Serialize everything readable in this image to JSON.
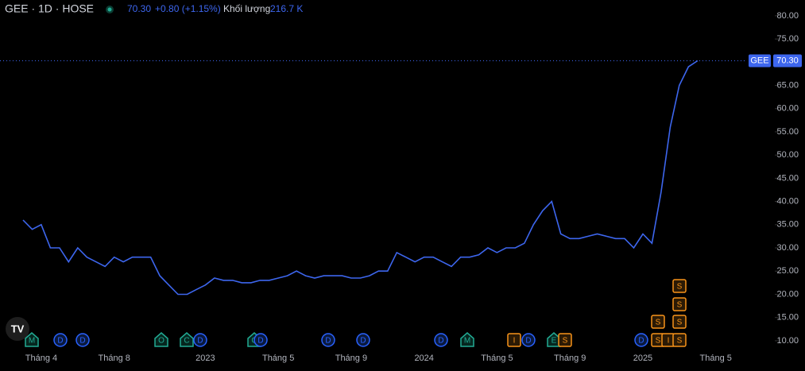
{
  "header": {
    "symbol": "GEE · 1D · HOSE",
    "price": "70.30",
    "change": "+0.80 (+1.15%)",
    "volume_label": "Khối lượng",
    "volume": "216.7 K"
  },
  "chart_data": {
    "type": "line",
    "categories": [
      null,
      null,
      "Tháng 4",
      null,
      null,
      null,
      null,
      null,
      null,
      null,
      "Tháng 8",
      null,
      null,
      null,
      null,
      null,
      null,
      null,
      null,
      null,
      "2023",
      null,
      null,
      null,
      null,
      null,
      null,
      null,
      "Tháng 5",
      null,
      null,
      null,
      null,
      null,
      null,
      null,
      "Tháng 9",
      null,
      null,
      null,
      null,
      null,
      null,
      null,
      "2024",
      null,
      null,
      null,
      null,
      null,
      null,
      null,
      "Tháng 5",
      null,
      null,
      null,
      null,
      null,
      null,
      null,
      "Tháng 9",
      null,
      null,
      null,
      null,
      null,
      null,
      null,
      "2025",
      null,
      null,
      null,
      null,
      null,
      null,
      null,
      "Tháng 5"
    ],
    "series": [
      {
        "name": "GEE",
        "color": "#3d66ee",
        "values": [
          36,
          34,
          35,
          30,
          30,
          27,
          30,
          28,
          27,
          26,
          28,
          27,
          28,
          28,
          28,
          24,
          22,
          20,
          20,
          21,
          22,
          23.5,
          23,
          23,
          22.5,
          22.5,
          23,
          23,
          23.5,
          24,
          25,
          24,
          23.5,
          24,
          24,
          24,
          23.5,
          23.5,
          24,
          25,
          25,
          29,
          28,
          27,
          28,
          28,
          27,
          26,
          28,
          28,
          28.5,
          30,
          29,
          30,
          30,
          31,
          35,
          38,
          40,
          33,
          32,
          32,
          32.5,
          33,
          32.5,
          32,
          32,
          30,
          33,
          31,
          42,
          56,
          65,
          69,
          70.3,
          null,
          null
        ]
      }
    ],
    "last_value": {
      "value": 70.3,
      "label": "70.30"
    },
    "ylim": [
      8.1,
      83.4
    ],
    "yticks": [
      {
        "value": 10,
        "label": "10.00"
      },
      {
        "value": 15,
        "label": "15.00"
      },
      {
        "value": 20,
        "label": "20.00"
      },
      {
        "value": 25,
        "label": "25.00"
      },
      {
        "value": 30,
        "label": "30.00"
      },
      {
        "value": 35,
        "label": "35.00"
      },
      {
        "value": 40,
        "label": "40.00"
      },
      {
        "value": 45,
        "label": "45.00"
      },
      {
        "value": 50,
        "label": "50.00"
      },
      {
        "value": 55,
        "label": "55.00"
      },
      {
        "value": 60,
        "label": "60.00"
      },
      {
        "value": 65,
        "label": "65.00"
      },
      {
        "value": 70,
        "label": "70.00"
      },
      {
        "value": 75,
        "label": "75.00"
      },
      {
        "value": 80,
        "label": "80.00"
      }
    ],
    "events": [
      "M",
      "D",
      "D",
      "O",
      "C",
      "D",
      "C",
      "D",
      "D",
      "D",
      "D",
      "M",
      "I",
      "D",
      "E",
      "S",
      "D",
      "S",
      "I",
      "S",
      "S",
      "S",
      "S",
      "S"
    ]
  }
}
